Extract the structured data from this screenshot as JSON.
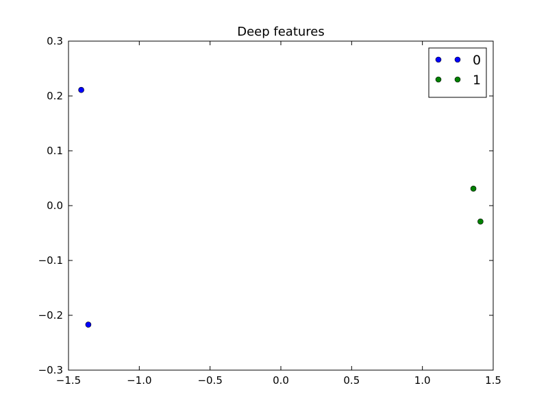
{
  "chart_data": {
    "type": "scatter",
    "title": "Deep features",
    "xlabel": "",
    "ylabel": "",
    "xlim": [
      -1.5,
      1.5
    ],
    "ylim": [
      -0.3,
      0.3
    ],
    "xticks": [
      -1.5,
      -1.0,
      -0.5,
      0.0,
      0.5,
      1.0,
      1.5
    ],
    "yticks": [
      -0.3,
      -0.2,
      -0.1,
      0.0,
      0.1,
      0.2,
      0.3
    ],
    "xtick_labels": [
      "−1.5",
      "−1.0",
      "−0.5",
      "0.0",
      "0.5",
      "1.0",
      "1.5"
    ],
    "ytick_labels": [
      "−0.3",
      "−0.2",
      "−0.1",
      "0.0",
      "0.1",
      "0.2",
      "0.3"
    ],
    "grid": false,
    "legend_position": "top-right",
    "series": [
      {
        "name": "0",
        "color": "#0000ff",
        "points": [
          [
            -1.41,
            0.211
          ],
          [
            -1.36,
            -0.217
          ]
        ]
      },
      {
        "name": "1",
        "color": "#008000",
        "points": [
          [
            1.36,
            0.031
          ],
          [
            1.41,
            -0.029
          ]
        ]
      }
    ]
  }
}
